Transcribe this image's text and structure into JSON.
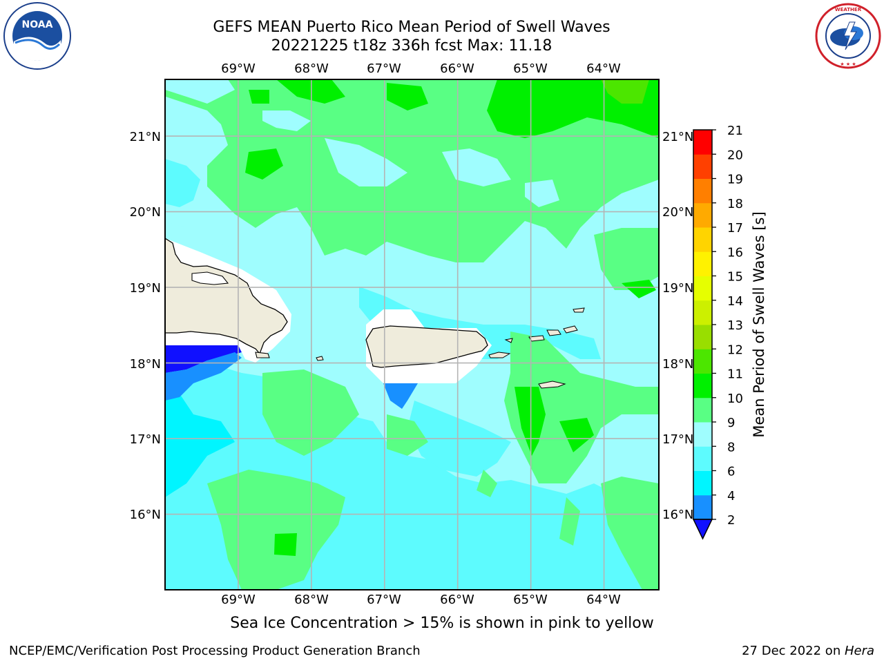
{
  "header": {
    "title_line1": "GEFS MEAN Puerto Rico Mean Period of Swell Waves",
    "title_line2": "20221225 t18z 336h fcst   Max: 11.18"
  },
  "logos": {
    "left": {
      "name": "noaa-logo",
      "text": "NOAA",
      "ring_text": "NATIONAL OCEANIC AND ATMOSPHERIC ADMINISTRATION · U.S. DEPARTMENT OF COMMERCE"
    },
    "right": {
      "name": "nws-logo",
      "ring_text": "NATIONAL WEATHER SERVICE"
    }
  },
  "map": {
    "lon_ticks": [
      "69°W",
      "68°W",
      "67°W",
      "66°W",
      "65°W",
      "64°W"
    ],
    "lat_ticks": [
      "16°N",
      "17°N",
      "18°N",
      "19°N",
      "20°N",
      "21°N"
    ],
    "lon_range": [
      -70.0,
      -63.25
    ],
    "lat_range": [
      15.0,
      21.75
    ],
    "grid": true,
    "land_color": "#efecdc",
    "ocean_base_color": "#9ffdfe"
  },
  "colorbar": {
    "label": "Mean Period of Swell Waves [s]",
    "ticks": [
      "2",
      "4",
      "6",
      "8",
      "9",
      "10",
      "11",
      "12",
      "13",
      "14",
      "15",
      "16",
      "17",
      "18",
      "19",
      "20",
      "21"
    ],
    "colors": [
      "#0a36f0",
      "#1890ff",
      "#00f5ff",
      "#5dfbfe",
      "#9ffdfe",
      "#59ff84",
      "#00f000",
      "#4ce600",
      "#99de00",
      "#ccf000",
      "#e6ff00",
      "#fff200",
      "#ffd400",
      "#ffaa00",
      "#ff7f00",
      "#ff4000",
      "#ff0000"
    ],
    "extend_min_color": "#1010ff"
  },
  "caption": "Sea Ice Concentration > 15% is shown in pink to yellow",
  "footer": {
    "left": "NCEP/EMC/Verification Post Processing Product Generation Branch",
    "right_prefix": "27 Dec 2022 on ",
    "right_host": "Hera"
  }
}
